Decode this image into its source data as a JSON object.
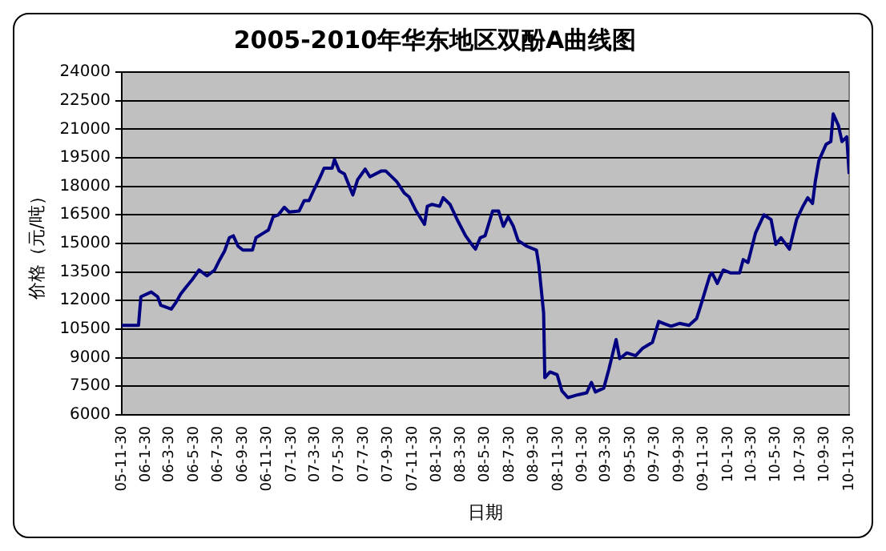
{
  "chart_data": {
    "type": "line",
    "title": "2005-2010年华东地区双酚A曲线图",
    "xlabel": "日期",
    "ylabel": "价格（元/吨）",
    "grid": "y",
    "legend": false,
    "marker": "none",
    "line_style": "solid",
    "ylim": [
      6000,
      24000
    ],
    "yticks": [
      6000,
      7500,
      9000,
      10500,
      12000,
      13500,
      15000,
      16500,
      18000,
      19500,
      21000,
      22500,
      24000
    ],
    "xlim": [
      "2005-11-30",
      "2010-11-30"
    ],
    "xticks": [
      {
        "value": "2005-11-30",
        "label": "05-11-30"
      },
      {
        "value": "2006-01-30",
        "label": "06-1-30"
      },
      {
        "value": "2006-03-30",
        "label": "06-3-30"
      },
      {
        "value": "2006-05-30",
        "label": "06-5-30"
      },
      {
        "value": "2006-07-30",
        "label": "06-7-30"
      },
      {
        "value": "2006-09-30",
        "label": "06-9-30"
      },
      {
        "value": "2006-11-30",
        "label": "06-11-30"
      },
      {
        "value": "2007-01-30",
        "label": "07-1-30"
      },
      {
        "value": "2007-03-30",
        "label": "07-3-30"
      },
      {
        "value": "2007-05-30",
        "label": "07-5-30"
      },
      {
        "value": "2007-07-30",
        "label": "07-7-30"
      },
      {
        "value": "2007-09-30",
        "label": "07-9-30"
      },
      {
        "value": "2007-11-30",
        "label": "07-11-30"
      },
      {
        "value": "2008-01-30",
        "label": "08-1-30"
      },
      {
        "value": "2008-03-30",
        "label": "08-3-30"
      },
      {
        "value": "2008-05-30",
        "label": "08-5-30"
      },
      {
        "value": "2008-07-30",
        "label": "08-7-30"
      },
      {
        "value": "2008-09-30",
        "label": "08-9-30"
      },
      {
        "value": "2008-11-30",
        "label": "08-11-30"
      },
      {
        "value": "2009-01-30",
        "label": "09-1-30"
      },
      {
        "value": "2009-03-30",
        "label": "09-3-30"
      },
      {
        "value": "2009-05-30",
        "label": "09-5-30"
      },
      {
        "value": "2009-07-30",
        "label": "09-7-30"
      },
      {
        "value": "2009-09-30",
        "label": "09-9-30"
      },
      {
        "value": "2009-11-30",
        "label": "09-11-30"
      },
      {
        "value": "2010-01-30",
        "label": "10-1-30"
      },
      {
        "value": "2010-03-30",
        "label": "10-3-30"
      },
      {
        "value": "2010-05-30",
        "label": "10-5-30"
      },
      {
        "value": "2010-07-30",
        "label": "10-7-30"
      },
      {
        "value": "2010-09-30",
        "label": "10-9-30"
      },
      {
        "value": "2010-11-30",
        "label": "10-11-30"
      }
    ],
    "series": [
      {
        "color": "#000080",
        "x": [
          "2005-11-30",
          "2006-01-11",
          "2006-01-17",
          "2006-02-12",
          "2006-02-28",
          "2006-03-08",
          "2006-04-03",
          "2006-04-15",
          "2006-04-27",
          "2006-05-12",
          "2006-05-24",
          "2006-06-12",
          "2006-07-02",
          "2006-07-21",
          "2006-08-03",
          "2006-08-15",
          "2006-08-27",
          "2006-09-06",
          "2006-09-18",
          "2006-09-30",
          "2006-10-24",
          "2006-11-02",
          "2006-11-21",
          "2006-12-03",
          "2006-12-15",
          "2006-12-28",
          "2007-01-12",
          "2007-01-24",
          "2007-02-18",
          "2007-03-03",
          "2007-03-15",
          "2007-03-27",
          "2007-04-09",
          "2007-04-22",
          "2007-05-12",
          "2007-05-18",
          "2007-05-30",
          "2007-06-12",
          "2007-07-03",
          "2007-07-15",
          "2007-08-03",
          "2007-08-15",
          "2007-09-12",
          "2007-09-24",
          "2007-10-21",
          "2007-11-09",
          "2007-11-21",
          "2007-12-09",
          "2007-12-30",
          "2008-01-06",
          "2008-01-18",
          "2008-02-06",
          "2008-02-15",
          "2008-03-03",
          "2008-03-21",
          "2008-04-11",
          "2008-04-30",
          "2008-05-06",
          "2008-05-18",
          "2008-05-30",
          "2008-06-18",
          "2008-07-03",
          "2008-07-15",
          "2008-07-27",
          "2008-08-09",
          "2008-08-21",
          "2008-09-12",
          "2008-10-06",
          "2008-10-12",
          "2008-10-24",
          "2008-10-27",
          "2008-11-09",
          "2008-11-27",
          "2008-12-09",
          "2008-12-24",
          "2009-01-18",
          "2009-02-09",
          "2009-02-21",
          "2009-03-03",
          "2009-03-24",
          "2009-04-06",
          "2009-04-24",
          "2009-05-03",
          "2009-05-21",
          "2009-06-12",
          "2009-06-30",
          "2009-07-24",
          "2009-08-09",
          "2009-08-21",
          "2009-09-09",
          "2009-09-30",
          "2009-10-24",
          "2009-11-12",
          "2009-11-24",
          "2009-12-15",
          "2009-12-21",
          "2010-01-03",
          "2010-01-18",
          "2010-02-06",
          "2010-02-28",
          "2010-03-09",
          "2010-03-21",
          "2010-04-09",
          "2010-04-30",
          "2010-05-18",
          "2010-05-30",
          "2010-06-12",
          "2010-07-03",
          "2010-07-21",
          "2010-08-06",
          "2010-08-18",
          "2010-08-30",
          "2010-09-06",
          "2010-09-15",
          "2010-10-03",
          "2010-10-15",
          "2010-10-21",
          "2010-11-03",
          "2010-11-12",
          "2010-11-24",
          "2010-11-30"
        ],
        "values": [
          10700,
          10700,
          12200,
          12450,
          12200,
          11750,
          11550,
          11900,
          12350,
          12750,
          13050,
          13600,
          13300,
          13600,
          14150,
          14600,
          15300,
          15400,
          14850,
          14650,
          14650,
          15300,
          15550,
          15700,
          16400,
          16500,
          16900,
          16650,
          16700,
          17250,
          17250,
          17800,
          18350,
          18950,
          18950,
          19400,
          18800,
          18650,
          17550,
          18350,
          18900,
          18500,
          18800,
          18800,
          18250,
          17650,
          17450,
          16700,
          16000,
          16950,
          17050,
          16950,
          17400,
          17050,
          16250,
          15400,
          14850,
          14700,
          15300,
          15400,
          16700,
          16700,
          15900,
          16400,
          15900,
          15150,
          14850,
          14650,
          13850,
          11350,
          7950,
          8250,
          8100,
          7250,
          6900,
          7050,
          7150,
          7700,
          7200,
          7400,
          8400,
          9950,
          8950,
          9250,
          9100,
          9500,
          9800,
          10900,
          10800,
          10650,
          10800,
          10700,
          11050,
          11850,
          13300,
          13450,
          12900,
          13600,
          13450,
          13450,
          14150,
          14000,
          15550,
          16500,
          16250,
          14950,
          15300,
          14700,
          16250,
          16950,
          17400,
          17100,
          18250,
          19350,
          20200,
          20350,
          21800,
          21200,
          20350,
          20600,
          18650
        ]
      }
    ]
  }
}
